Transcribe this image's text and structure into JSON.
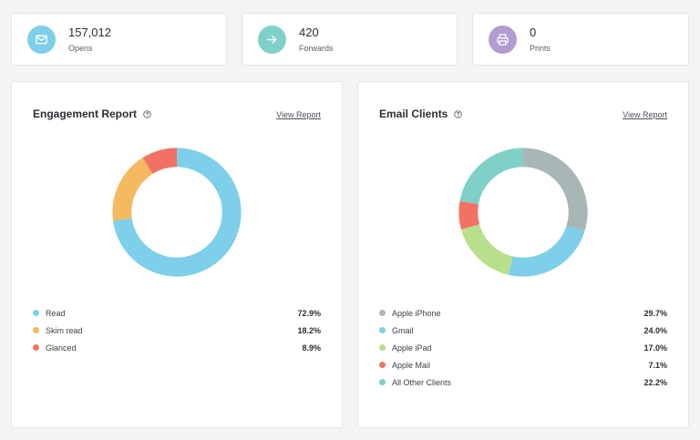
{
  "stats": [
    {
      "value": "157,012",
      "label": "Opens",
      "icon": "envelope-icon",
      "color": "#7ecfe9"
    },
    {
      "value": "420",
      "label": "Forwards",
      "icon": "arrow-right-icon",
      "color": "#7fd1c7"
    },
    {
      "value": "0",
      "label": "Prints",
      "icon": "printer-icon",
      "color": "#b39cd0"
    }
  ],
  "engagement": {
    "title": "Engagement Report",
    "view_report": "View Report",
    "legend": [
      {
        "label": "Read",
        "value": "72.9%"
      },
      {
        "label": "Skim read",
        "value": "18.2%"
      },
      {
        "label": "Glanced",
        "value": "8.9%"
      }
    ]
  },
  "clients": {
    "title": "Email Clients",
    "view_report": "View Report",
    "legend": [
      {
        "label": "Apple iPhone",
        "value": "29.7%"
      },
      {
        "label": "Gmail",
        "value": "24.0%"
      },
      {
        "label": "Apple iPad",
        "value": "17.0%"
      },
      {
        "label": "Apple Mail",
        "value": "7.1%"
      },
      {
        "label": "All Other Clients",
        "value": "22.2%"
      }
    ]
  },
  "chart_data": [
    {
      "type": "pie",
      "categories": [
        "Read",
        "Skim read",
        "Glanced"
      ],
      "values": [
        72.9,
        18.2,
        8.9
      ],
      "colors": [
        "#7ecfe9",
        "#f5b95f",
        "#f17265"
      ],
      "title": "Engagement Report"
    },
    {
      "type": "pie",
      "categories": [
        "Apple iPhone",
        "Gmail",
        "Apple iPad",
        "Apple Mail",
        "All Other Clients"
      ],
      "values": [
        29.7,
        24.0,
        17.0,
        7.1,
        22.2
      ],
      "colors": [
        "#a9b6b6",
        "#7ecfe9",
        "#b8e08c",
        "#f17265",
        "#7fd1c7"
      ],
      "title": "Email Clients"
    }
  ]
}
